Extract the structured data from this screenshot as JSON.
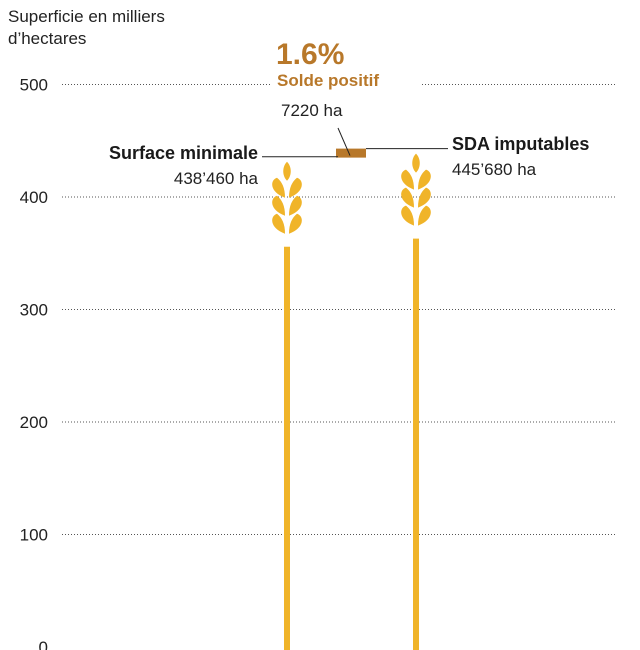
{
  "chart_data": {
    "type": "bar",
    "ylabel_line1": "Superficie en milliers",
    "ylabel_line2": "d’hectares",
    "ylim": [
      0,
      500
    ],
    "yticks": [
      0,
      100,
      200,
      300,
      400,
      500
    ],
    "grid": true,
    "series": [
      {
        "name": "Surface minimale",
        "value": 438.46,
        "value_label": "438’460 ha"
      },
      {
        "name": "SDA imputables",
        "value": 445.68,
        "value_label": "445’680 ha"
      }
    ],
    "difference": {
      "percent_label": "1.6%",
      "label": "Solde positif",
      "value_label": "7220 ha",
      "value": 7.22
    },
    "colors": {
      "stem": "#f0b429",
      "grain": "#f0b429",
      "difference": "#b8782a",
      "accent_text": "#b8782a",
      "grid": "#555555"
    }
  }
}
